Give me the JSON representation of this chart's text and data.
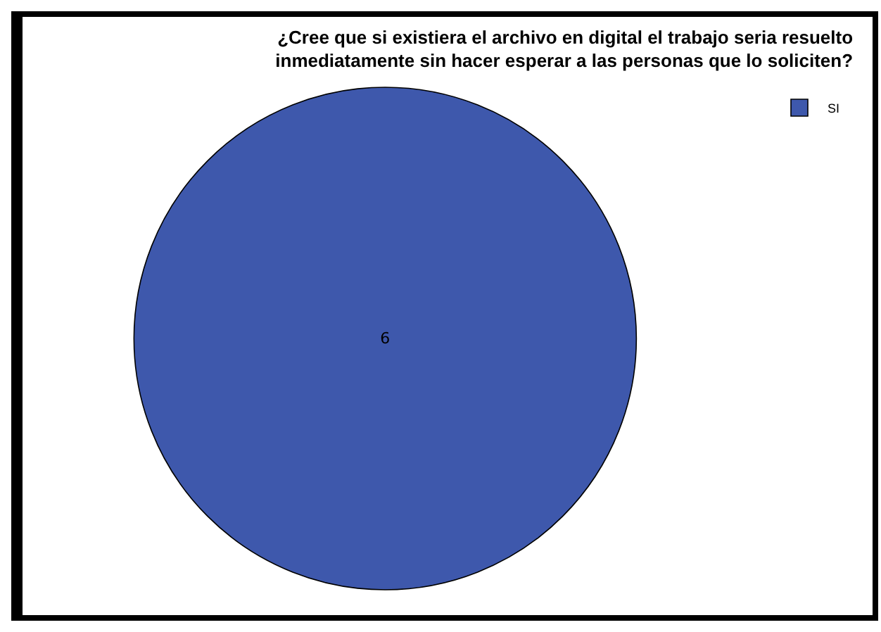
{
  "chart_data": {
    "type": "pie",
    "title": "¿Cree que si existiera el archivo en digital el trabajo seria resuelto\ninmediatamente sin hacer esperar a las personas que lo soliciten?",
    "categories": [
      "SI"
    ],
    "values": [
      6
    ],
    "colors": [
      "#3e58ac"
    ],
    "data_labels": true,
    "legend": "top right"
  }
}
